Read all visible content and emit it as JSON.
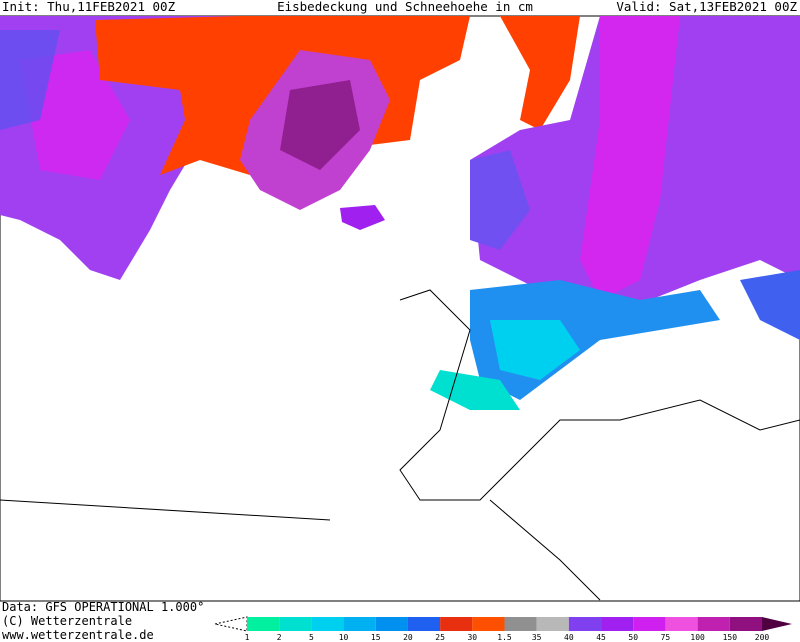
{
  "header": {
    "init": "Init: Thu,11FEB2021 00Z",
    "title": "Eisbedeckung und Schneehoehe in cm",
    "valid": "Valid: Sat,13FEB2021 00Z"
  },
  "footer": {
    "data": "Data: GFS OPERATIONAL 1.000°",
    "copyright": "(C) Wetterzentrale",
    "url": "www.wetterzentrale.de"
  },
  "legend": {
    "labels": [
      "1",
      "2",
      "5",
      "10",
      "15",
      "20",
      "25",
      "30",
      "1.5",
      "35",
      "40",
      "45",
      "50",
      "75",
      "100",
      "150",
      "200"
    ],
    "colors": [
      "#00f0a0",
      "#00e0d0",
      "#00d0f0",
      "#00b0f0",
      "#0090f0",
      "#2060f0",
      "#e83010",
      "#ff5000",
      "#909090",
      "#b8b8b8",
      "#8040f0",
      "#a020f0",
      "#d020f0",
      "#f050e0",
      "#c020b0",
      "#901080"
    ]
  }
}
